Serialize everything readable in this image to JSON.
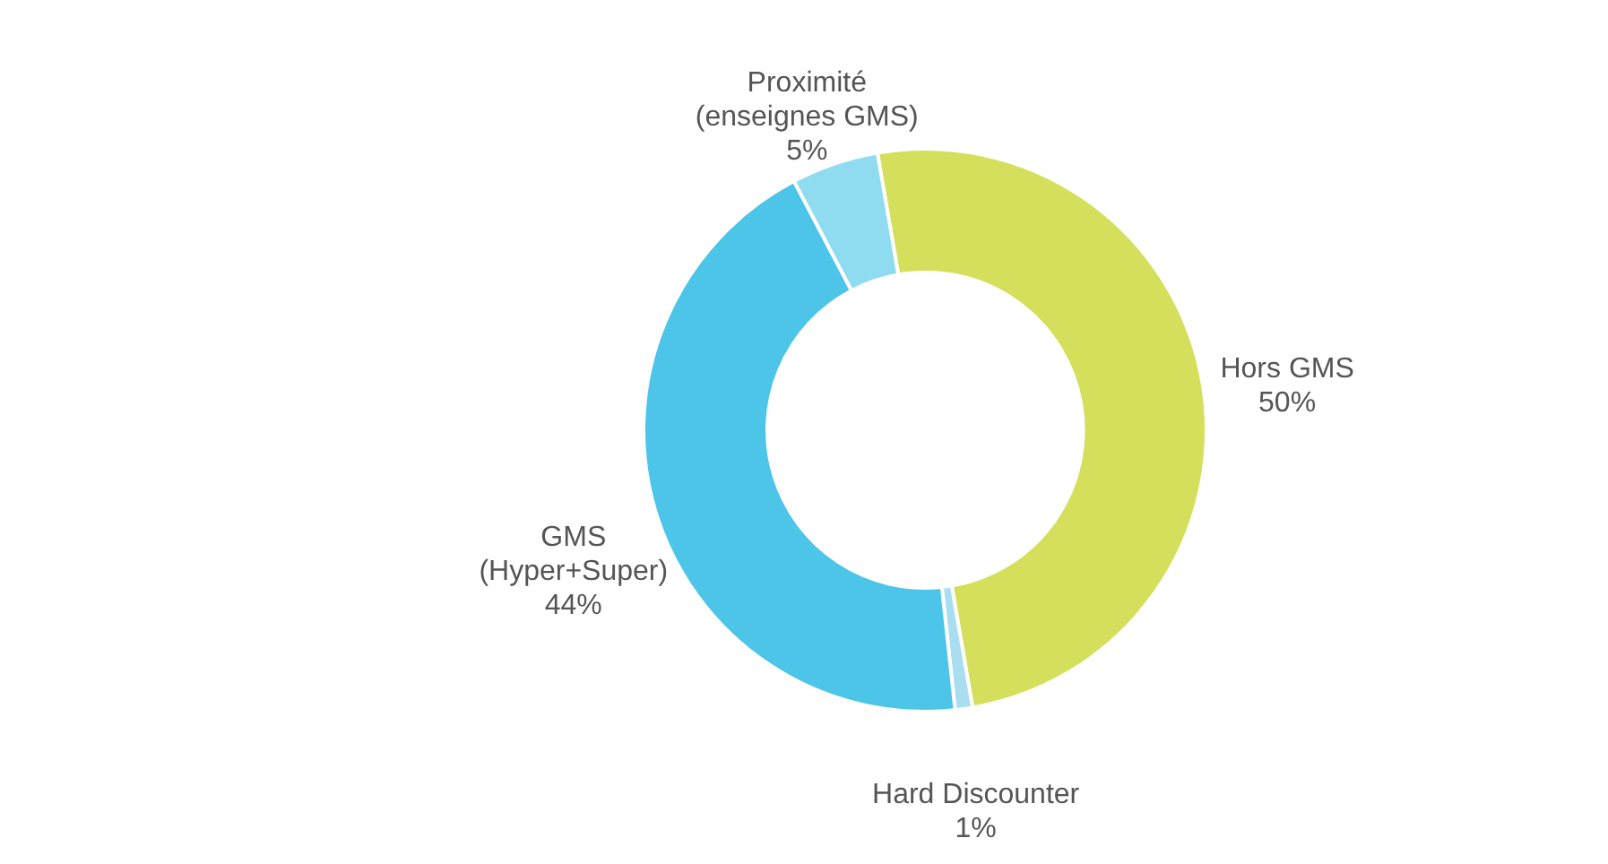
{
  "chart_data": {
    "type": "donut",
    "categories": [
      "Hors GMS",
      "Hard Discounter",
      "GMS (Hyper+Super)",
      "Proximité (enseignes GMS)"
    ],
    "values": [
      50,
      1,
      44,
      5
    ],
    "value_labels": [
      "50%",
      "1%",
      "44%",
      "5%"
    ],
    "colors": [
      "#d4e05c",
      "#a9def0",
      "#4cc5e8",
      "#8fdbf0"
    ]
  }
}
